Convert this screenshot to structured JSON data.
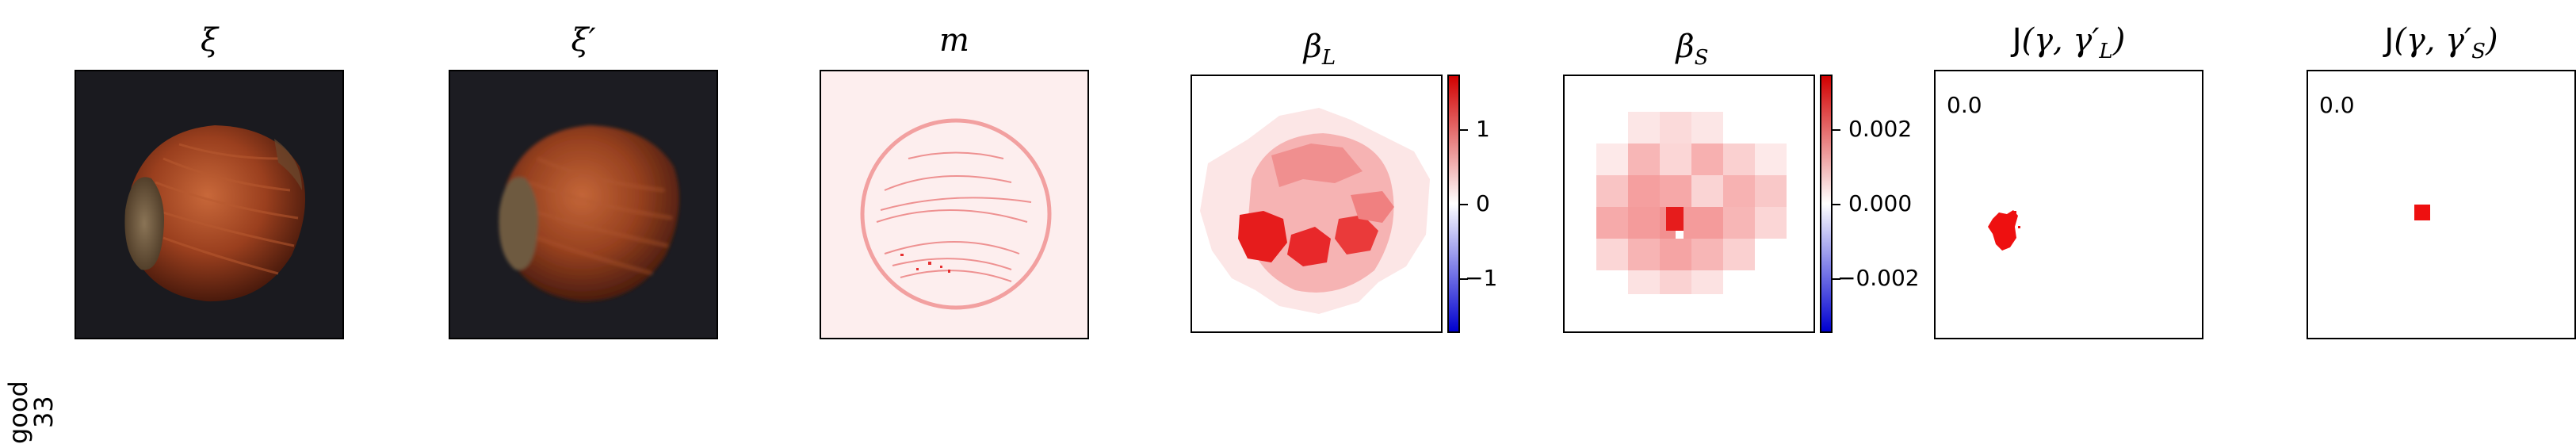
{
  "row_label": {
    "line1": "good",
    "line2": "33"
  },
  "panels": [
    {
      "key": "xi",
      "title": "ξ"
    },
    {
      "key": "xi_prime",
      "title": "ξ′"
    },
    {
      "key": "m",
      "title": "m"
    },
    {
      "key": "beta_L",
      "title": "β",
      "sub": "L"
    },
    {
      "key": "beta_S",
      "title": "β",
      "sub": "S"
    },
    {
      "key": "J_L",
      "title_prefix": "J",
      "title_rest": "(γ, γ′",
      "sub": "L",
      "title_end": ")",
      "score": "0.0"
    },
    {
      "key": "J_S",
      "title_prefix": "J",
      "title_rest": "(γ, γ′",
      "sub": "S",
      "title_end": ")",
      "score": "0.0"
    }
  ],
  "colorbar_L": {
    "ticks": [
      "1",
      "0",
      "−1"
    ]
  },
  "colorbar_S": {
    "ticks": [
      "0.002",
      "0.000",
      "−0.002"
    ]
  },
  "colors": {
    "positive": "#e8161c",
    "negative": "#1515e8",
    "neutral": "#ffffff"
  }
}
